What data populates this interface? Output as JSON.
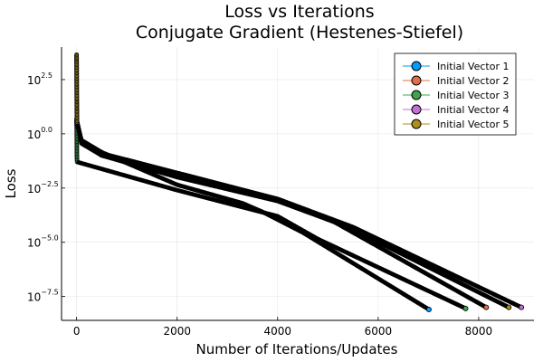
{
  "chart_data": {
    "type": "scatter",
    "title": "Loss vs Iterations",
    "subtitle": "Conjugate Gradient (Hestenes-Stiefel)",
    "xlabel": "Number of Iterations/Updates",
    "ylabel": "Loss",
    "xlim": [
      -300,
      9100
    ],
    "ylim_log10": [
      -8.6,
      4.0
    ],
    "y_scale": "log10",
    "x_ticks": [
      0,
      2000,
      4000,
      6000,
      8000
    ],
    "x_tick_labels": [
      "0",
      "2000",
      "4000",
      "6000",
      "8000"
    ],
    "y_ticks_log10": [
      2.5,
      0.0,
      -2.5,
      -5.0,
      -7.5
    ],
    "y_tick_labels": [
      {
        "base": "10",
        "exp": "2.5"
      },
      {
        "base": "10",
        "exp": "0.0"
      },
      {
        "base": "10",
        "exp": "−2.5"
      },
      {
        "base": "10",
        "exp": "−5.0"
      },
      {
        "base": "10",
        "exp": "−7.5"
      }
    ],
    "grid": true,
    "legend_position": "top-right",
    "trace_color": "#000000",
    "series": [
      {
        "name": "Initial Vector 1",
        "color": "#009AFA",
        "log10_loss_points": [
          [
            0,
            0.6
          ],
          [
            3,
            0.4
          ],
          [
            100,
            -0.3
          ],
          [
            500,
            -0.85
          ],
          [
            2000,
            -2.35
          ],
          [
            3300,
            -3.2
          ],
          [
            3700,
            -3.6
          ],
          [
            4500,
            -4.55
          ],
          [
            7010,
            -8.1
          ]
        ]
      },
      {
        "name": "Initial Vector 2",
        "color": "#E36F47",
        "log10_loss_points": [
          [
            0,
            0.7
          ],
          [
            3,
            0.5
          ],
          [
            100,
            -0.45
          ],
          [
            500,
            -1.0
          ],
          [
            2000,
            -1.9
          ],
          [
            4000,
            -3.1
          ],
          [
            5000,
            -3.9
          ],
          [
            8150,
            -8.0
          ]
        ]
      },
      {
        "name": "Initial Vector 3",
        "color": "#3EA44E",
        "log10_loss_points": [
          [
            0,
            0.6
          ],
          [
            2,
            0.2
          ],
          [
            5,
            -1.0
          ],
          [
            10,
            -1.3
          ],
          [
            2000,
            -2.6
          ],
          [
            4000,
            -3.8
          ],
          [
            4800,
            -4.85
          ],
          [
            7740,
            -8.05
          ]
        ]
      },
      {
        "name": "Initial Vector 4",
        "color": "#C371D2",
        "log10_loss_points": [
          [
            0,
            3.6
          ],
          [
            1,
            3.0
          ],
          [
            2,
            2.0
          ],
          [
            4,
            1.0
          ],
          [
            6,
            0.6
          ],
          [
            100,
            -0.35
          ],
          [
            500,
            -0.9
          ],
          [
            2000,
            -1.8
          ],
          [
            4000,
            -3.0
          ],
          [
            5500,
            -4.3
          ],
          [
            8850,
            -8.0
          ]
        ]
      },
      {
        "name": "Initial Vector 5",
        "color": "#AC8E18",
        "log10_loss_points": [
          [
            0,
            3.65
          ],
          [
            1,
            3.2
          ],
          [
            2,
            2.4
          ],
          [
            3,
            1.6
          ],
          [
            5,
            0.9
          ],
          [
            8,
            0.5
          ],
          [
            100,
            -0.4
          ],
          [
            500,
            -1.0
          ],
          [
            2000,
            -2.0
          ],
          [
            4000,
            -3.1
          ],
          [
            5400,
            -4.3
          ],
          [
            8600,
            -8.0
          ]
        ]
      }
    ]
  }
}
